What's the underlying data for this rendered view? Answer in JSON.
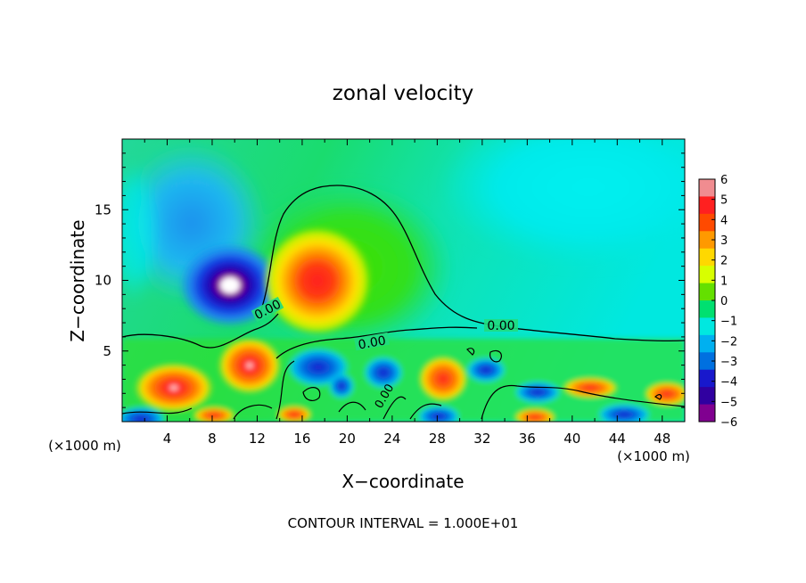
{
  "chart_data": {
    "type": "heatmap",
    "title": "zonal velocity",
    "xlabel": "X−coordinate",
    "ylabel": "Z−coordinate",
    "x_unit_left": "(×1000 m)",
    "x_unit_right": "(×1000 m)",
    "footer": "CONTOUR INTERVAL = 1.000E+01",
    "xlim": [
      0,
      50
    ],
    "ylim": [
      0,
      20
    ],
    "xticks": [
      4,
      8,
      12,
      16,
      20,
      24,
      28,
      32,
      36,
      40,
      44,
      48
    ],
    "yticks": [
      5,
      10,
      15
    ],
    "contour_labels": [
      "0.00",
      "0.00",
      "0.00",
      "0.00"
    ],
    "colorbar": {
      "ticks": [
        "6",
        "5",
        "4",
        "3",
        "2",
        "1",
        "0",
        "−1",
        "−2",
        "−3",
        "−4",
        "−5",
        "−6"
      ],
      "colors": [
        "#f08c90",
        "#ff2020",
        "#ff4a00",
        "#ff9900",
        "#ffd800",
        "#d8ff00",
        "#64e000",
        "#00e070",
        "#00e8e0",
        "#00b0f0",
        "#0070e0",
        "#1818cc",
        "#3000a0",
        "#800090"
      ]
    },
    "features": [
      {
        "name": "negative core",
        "x": 9.5,
        "z": 9.6,
        "value": -6.5
      },
      {
        "name": "positive core",
        "x": 17.4,
        "z": 9.8,
        "value": 5.0
      },
      {
        "name": "upper-right",
        "x": 40,
        "z": 18,
        "value": -2.0
      },
      {
        "name": "upper-left lobe",
        "x": 7,
        "z": 16,
        "value": -2.8
      }
    ]
  }
}
